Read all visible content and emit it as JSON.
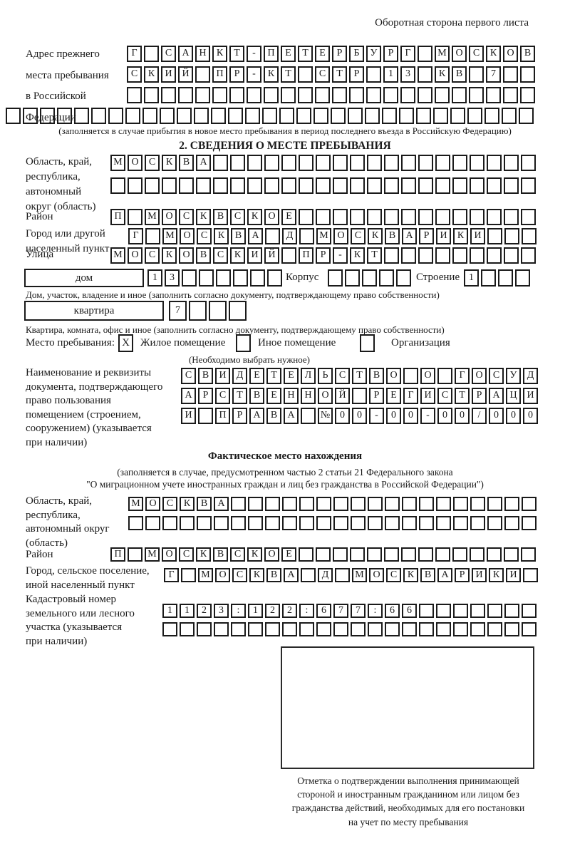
{
  "header": {
    "note": "Оборотная сторона первого листа"
  },
  "prev_address": {
    "label": "Адрес прежнего\nместа пребывания\nв Российской\nФедерации",
    "row1": {
      "cells": "Г САНКТ-ПЕТЕРБУРГ МОСКОВ",
      "len": 24
    },
    "row2": {
      "cells": "СКИЙ ПР-КТ СТР 13 КВ 7",
      "len": 24
    },
    "row3": {
      "cells": "",
      "len": 24
    },
    "row4": {
      "cells": "",
      "len": 31
    },
    "note": "(заполняется в случае прибытия в новое место пребывания в период последнего въезда в Российскую Федерацию)"
  },
  "section2": {
    "title": "2. СВЕДЕНИЯ О МЕСТЕ ПРЕБЫВАНИЯ",
    "region": {
      "label": "Область, край,\nреспублика,\nавтономный\nокруг (область)",
      "row1": {
        "cells": "МОСКВА",
        "len": 25
      },
      "row2": {
        "cells": "",
        "len": 25
      }
    },
    "district": {
      "label": "Район",
      "row": {
        "cells": "П МОСКВСКОЕ",
        "len": 25
      }
    },
    "city": {
      "label": "Город или другой\nнаселенный пункт",
      "row": {
        "cells": "Г МОСКВА Д МОСКВАРИКИ",
        "len": 24
      }
    },
    "street": {
      "label": "Улица",
      "row": {
        "cells": "МОСКОВСКИЙ ПР-КТ",
        "len": 25
      }
    },
    "house": {
      "box_label": "дом",
      "row": {
        "cells": "13",
        "len": 8
      },
      "korpus_label": "Корпус",
      "korpus_row": {
        "cells": "",
        "len": 5
      },
      "stroenie_label": "Строение",
      "stroenie_row": {
        "cells": "1",
        "len": 4
      },
      "note": "Дом, участок, владение и иное (заполнить согласно документу, подтверждающему право собственности)"
    },
    "apartment": {
      "box_label": "квартира",
      "row": {
        "cells": "7",
        "len": 4
      },
      "note": "Квартира, комната, офис и иное (заполнить согласно документу, подтверждающему право собственности)"
    },
    "stay": {
      "label": "Место пребывания:",
      "mark": "X",
      "options": [
        "Жилое помещение",
        "Иное помещение",
        "Организация"
      ],
      "note": "(Необходимо выбрать нужное)"
    },
    "doc": {
      "label": "Наименование и реквизиты\nдокумента, подтверждающего\nправо пользования\nпомещением (строением,\nсооружением) (указывается\nпри наличии)",
      "row1": {
        "cells": "СВИДЕТЕЛЬСТВО О ГОСУД",
        "len": 21
      },
      "row2": {
        "cells": "АРСТВЕННОЙ РЕГИСТРАЦИ",
        "len": 21
      },
      "row3": {
        "cells": "И ПРАВА №00-00-00/000",
        "len": 21
      }
    }
  },
  "actual_location": {
    "title": "Фактическое место нахождения",
    "note1": "(заполняется в случае, предусмотренном частью 2 статьи 21 Федерального закона",
    "note2": "\"О миграционном учете иностранных граждан и лиц без гражданства в Российской Федерации\")",
    "region": {
      "label": "Область, край,\nреспублика,\nавтономный округ\n(область)",
      "row1": {
        "cells": "МОСКВА",
        "len": 24
      },
      "row2": {
        "cells": "",
        "len": 24
      }
    },
    "district": {
      "label": "Район",
      "row": {
        "cells": "П МОСКВСКОЕ",
        "len": 25
      }
    },
    "city": {
      "label": "Город, сельское поселение,\nиной населенный пункт",
      "row": {
        "cells": "Г МОСКВА Д МОСКВАРИКИ",
        "len": 22
      }
    },
    "cadastre": {
      "label": "Кадастровый номер\nземельного или лесного\nучастка (указывается\nпри наличии)",
      "row1": {
        "cells": "1123:122:677:66",
        "len": 22
      },
      "row2": {
        "cells": "",
        "len": 22
      }
    },
    "mark_note": "Отметка о подтверждении выполнения принимающей\nстороной и иностранным гражданином или лицом без\nгражданства действий, необходимых для его постановки\nна учет по месту пребывания"
  }
}
